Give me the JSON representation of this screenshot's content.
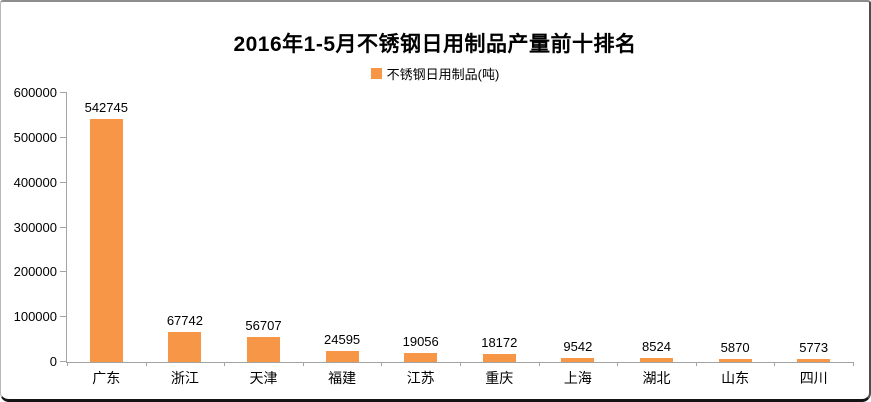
{
  "title": "2016年1-5月不锈钢日用制品产量前十排名",
  "legend": {
    "label": "不锈钢日用制品(吨)",
    "marker_color": "#F79646"
  },
  "colors": {
    "bar": "#F79646",
    "axis": "#a3a3a3",
    "text": "#000000",
    "background": "#ffffff"
  },
  "chart_data": {
    "type": "bar",
    "title": "2016年1-5月不锈钢日用制品产量前十排名",
    "legend_entries": [
      "不锈钢日用制品(吨)"
    ],
    "legend_position": "top",
    "categories": [
      "广东",
      "浙江",
      "天津",
      "福建",
      "江苏",
      "重庆",
      "上海",
      "湖北",
      "山东",
      "四川"
    ],
    "values": [
      542745,
      67742,
      56707,
      24595,
      19056,
      18172,
      9542,
      8524,
      5870,
      5773
    ],
    "xlabel": "",
    "ylabel": "",
    "ylim": [
      0,
      600000
    ],
    "yticks": [
      0,
      100000,
      200000,
      300000,
      400000,
      500000,
      600000
    ],
    "grid": false,
    "data_labels": true,
    "bar_color": "#F79646"
  }
}
